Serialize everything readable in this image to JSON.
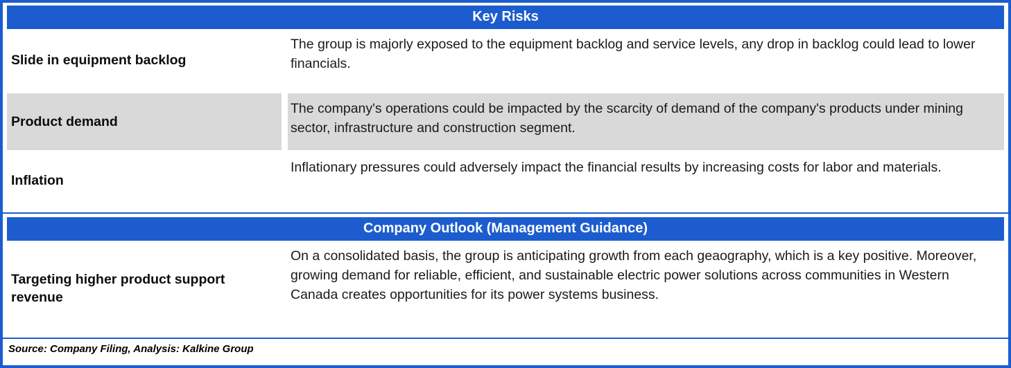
{
  "theme": {
    "accent_blue": "#1C5CCE",
    "row_gray": "#D9D9D9",
    "header_text_color": "#FFFFFF"
  },
  "key_risks": {
    "title": "Key Risks",
    "rows": [
      {
        "label": "Slide in equipment backlog",
        "text": "The group is majorly exposed to the equipment backlog and service levels, any drop in backlog could lead to lower financials."
      },
      {
        "label": "Product demand",
        "text": "The company's operations could be impacted by the scarcity of demand of the company's products under mining sector, infrastructure and construction segment."
      },
      {
        "label": "Inflation",
        "text": "Inflationary pressures could adversely impact the financial results by increasing costs for labor and materials."
      }
    ]
  },
  "outlook": {
    "title": "Company Outlook (Management Guidance)",
    "rows": [
      {
        "label": "Targeting higher product support revenue",
        "text": "On a consolidated basis, the group is anticipating growth from each geaography, which is a key positive. Moreover,  growing demand for reliable, efficient, and sustainable electric power solutions across communities in Western Canada creates opportunities for its power systems business."
      }
    ]
  },
  "footer": {
    "source": "Source: Company Filing, Analysis: Kalkine Group"
  }
}
